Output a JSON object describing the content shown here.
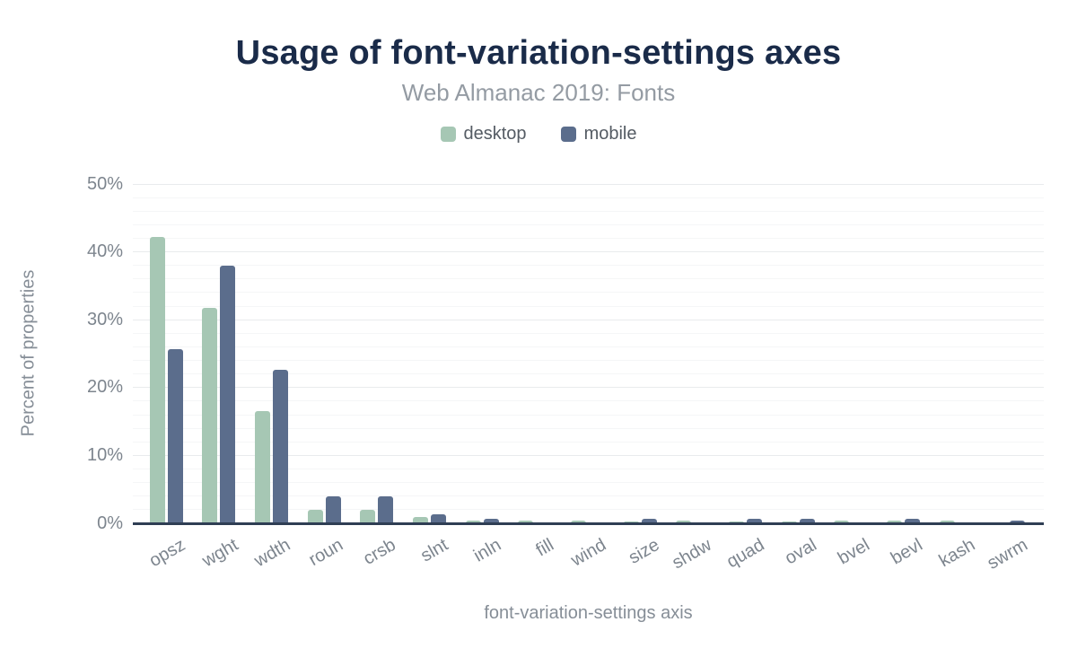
{
  "chart_data": {
    "type": "bar",
    "title": "Usage of font-variation-settings axes",
    "subtitle": "Web Almanac 2019: Fonts",
    "xlabel": "font-variation-settings axis",
    "ylabel": "Percent of properties",
    "categories": [
      "opsz",
      "wght",
      "wdth",
      "roun",
      "crsb",
      "slnt",
      "inln",
      "fill",
      "wind",
      "size",
      "shdw",
      "quad",
      "oval",
      "bvel",
      "bevl",
      "kash",
      "swrm"
    ],
    "series": [
      {
        "name": "desktop",
        "color": "#a6c7b4",
        "values": [
          42.2,
          31.7,
          16.5,
          2.0,
          2.0,
          0.9,
          0.4,
          0.4,
          0.4,
          0.3,
          0.4,
          0.3,
          0.3,
          0.4,
          0.4,
          0.4,
          0.1
        ]
      },
      {
        "name": "mobile",
        "color": "#5b6d8c",
        "values": [
          25.6,
          38.0,
          22.6,
          4.0,
          4.0,
          1.3,
          0.6,
          0,
          0,
          0.6,
          0,
          0.6,
          0.6,
          0,
          0.6,
          0,
          0.4
        ]
      }
    ],
    "ylim": [
      0,
      50
    ],
    "yticks": [
      0,
      10,
      20,
      30,
      40,
      50
    ],
    "ytick_suffix": "%",
    "minor_grid_step": 2,
    "grid": true,
    "legend_position": "top-center"
  },
  "colors": {
    "title": "#1a2b49",
    "subtitle": "#949ba3",
    "legend_text": "#545b63",
    "tick_text": "#7d858e",
    "axis_title_text": "#868e97",
    "axis_line": "#2f3e54",
    "major_grid": "#e9ebed",
    "minor_grid": "#f5f6f7",
    "background": "#ffffff"
  }
}
